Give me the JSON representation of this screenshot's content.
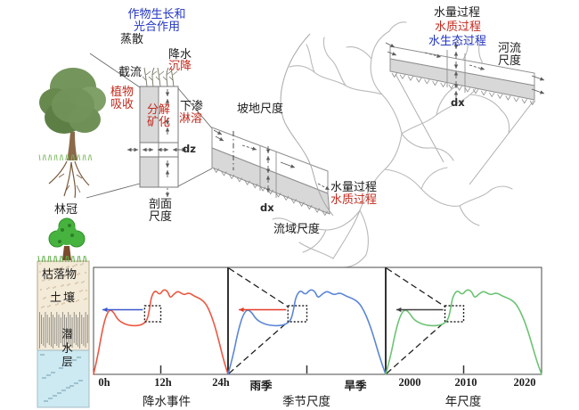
{
  "colors": {
    "red_text": "#c22a1d",
    "blue_text": "#2336c4",
    "black_text": "#1c1c1c",
    "diagram_gray": "#8f8f8f",
    "fill_gray": "#d9d9d9",
    "curve_red": "#ec5741",
    "curve_blue": "#5b86d6",
    "curve_green": "#6cc374",
    "arrow_blue": "#3c55cc",
    "arrow_red": "#e23a28",
    "arrow_black": "#3f3f3f"
  },
  "top_diagram": {
    "crop_growth_photosynthesis": "作物生长和光合作用",
    "evapotranspiration": "蒸散",
    "interception": "截流",
    "precipitation": "降水",
    "deposition": "沉降",
    "plant_uptake": "植物吸收",
    "decomposition_mineralization": "分解矿化",
    "infiltration": "下渗",
    "leaching": "淋溶",
    "dz": "dz",
    "profile_scale": "剖面尺度",
    "slope_scale": "坡地尺度",
    "dx_slope": "dx",
    "watershed_scale": "流域尺度",
    "watershed_water_quantity": "水量过程",
    "watershed_water_quality": "水质过程",
    "river_water_quantity": "水量过程",
    "river_water_quality": "水质过程",
    "river_water_ecology": "水生态过程",
    "river_scale": "河流尺度",
    "dx_river": "dx"
  },
  "soil_column": {
    "canopy": "林冠",
    "litter": "枯落物",
    "soil": "土壤",
    "phreatic_layer": "潜水层"
  },
  "chart_data": [
    {
      "type": "line",
      "title": "降水事件",
      "x_ticks": [
        "0h",
        "12h",
        "24h"
      ],
      "color": "#ec5741",
      "arrow_color": "#3c55cc",
      "zoom_lines": false,
      "points_norm": [
        [
          0,
          0
        ],
        [
          3,
          16
        ],
        [
          6,
          38
        ],
        [
          9,
          54
        ],
        [
          12,
          61
        ],
        [
          15,
          58
        ],
        [
          18,
          51
        ],
        [
          23,
          47
        ],
        [
          28,
          45.5
        ],
        [
          33,
          45.5
        ],
        [
          37,
          47
        ],
        [
          40,
          51
        ],
        [
          41.5,
          60
        ],
        [
          43,
          73
        ],
        [
          46,
          79
        ],
        [
          49,
          74
        ],
        [
          52,
          79.5
        ],
        [
          55,
          78
        ],
        [
          57,
          71
        ],
        [
          60,
          75.5
        ],
        [
          63,
          78
        ],
        [
          67,
          74
        ],
        [
          71,
          76.5
        ],
        [
          75,
          73
        ],
        [
          79,
          71
        ],
        [
          83,
          67
        ],
        [
          86,
          60
        ],
        [
          89,
          50
        ],
        [
          92,
          37
        ],
        [
          95,
          22
        ],
        [
          97.5,
          10
        ],
        [
          100,
          0
        ]
      ]
    },
    {
      "type": "line",
      "title": "季节尺度",
      "x_ticks": [
        "雨季",
        "旱季"
      ],
      "color": "#5b86d6",
      "arrow_color": "#e23a28",
      "zoom_lines": true,
      "points_norm": [
        [
          0,
          0
        ],
        [
          3,
          16
        ],
        [
          6,
          38
        ],
        [
          9,
          54
        ],
        [
          12,
          61
        ],
        [
          15,
          58
        ],
        [
          18,
          51
        ],
        [
          23,
          47
        ],
        [
          28,
          45.5
        ],
        [
          33,
          45.5
        ],
        [
          37,
          47
        ],
        [
          40,
          51
        ],
        [
          41.5,
          60
        ],
        [
          43,
          73
        ],
        [
          46,
          79
        ],
        [
          49,
          74
        ],
        [
          52,
          79.5
        ],
        [
          55,
          78
        ],
        [
          57,
          71
        ],
        [
          60,
          75.5
        ],
        [
          63,
          78
        ],
        [
          67,
          74
        ],
        [
          71,
          76.5
        ],
        [
          75,
          73
        ],
        [
          79,
          71
        ],
        [
          83,
          67
        ],
        [
          86,
          60
        ],
        [
          89,
          50
        ],
        [
          92,
          37
        ],
        [
          95,
          22
        ],
        [
          97.5,
          10
        ],
        [
          100,
          0
        ]
      ]
    },
    {
      "type": "line",
      "title": "年尺度",
      "x_ticks": [
        "2000",
        "2010",
        "2020"
      ],
      "color": "#6cc374",
      "arrow_color": "#3f3f3f",
      "zoom_lines": true,
      "points_norm": [
        [
          0,
          0
        ],
        [
          3,
          16
        ],
        [
          6,
          38
        ],
        [
          9,
          54
        ],
        [
          12,
          61
        ],
        [
          15,
          58
        ],
        [
          18,
          51
        ],
        [
          23,
          47
        ],
        [
          28,
          45.5
        ],
        [
          33,
          45.5
        ],
        [
          37,
          47
        ],
        [
          40,
          51
        ],
        [
          41.5,
          60
        ],
        [
          43,
          73
        ],
        [
          46,
          79
        ],
        [
          49,
          74
        ],
        [
          52,
          79.5
        ],
        [
          55,
          78
        ],
        [
          57,
          71
        ],
        [
          60,
          75.5
        ],
        [
          63,
          78
        ],
        [
          67,
          74
        ],
        [
          71,
          76.5
        ],
        [
          75,
          73
        ],
        [
          79,
          71
        ],
        [
          83,
          67
        ],
        [
          86,
          60
        ],
        [
          89,
          50
        ],
        [
          92,
          37
        ],
        [
          95,
          22
        ],
        [
          97.5,
          10
        ],
        [
          100,
          0
        ]
      ]
    }
  ]
}
